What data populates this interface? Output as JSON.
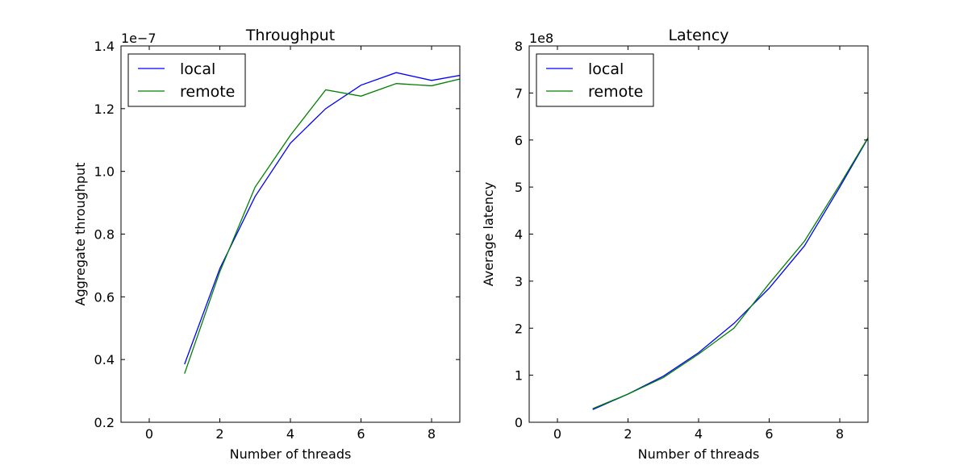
{
  "chart_data": [
    {
      "type": "line",
      "title": "Throughput",
      "xlabel": "Number of threads",
      "ylabel": "Aggregate throughput",
      "offset_text": "1e−7",
      "xlim": [
        -0.8,
        8.8
      ],
      "ylim": [
        0.2,
        1.4
      ],
      "xticks": [
        0,
        2,
        4,
        6,
        8
      ],
      "xtick_labels": [
        "0",
        "2",
        "4",
        "6",
        "8"
      ],
      "yticks": [
        0.2,
        0.4,
        0.6,
        0.8,
        1.0,
        1.2,
        1.4
      ],
      "ytick_labels": [
        "0.2",
        "0.4",
        "0.6",
        "0.8",
        "1.0",
        "1.2",
        "1.4"
      ],
      "legend": "top-left",
      "grid": false,
      "x": [
        1,
        2,
        3,
        4,
        5,
        6,
        7,
        8,
        9
      ],
      "series": [
        {
          "name": "local",
          "color": "#0000ff",
          "values": [
            0.385,
            0.69,
            0.92,
            1.09,
            1.2,
            1.275,
            1.315,
            1.29,
            1.31
          ]
        },
        {
          "name": "remote",
          "color": "#008000",
          "values": [
            0.355,
            0.68,
            0.95,
            1.115,
            1.26,
            1.24,
            1.28,
            1.273,
            1.3
          ]
        }
      ]
    },
    {
      "type": "line",
      "title": "Latency",
      "xlabel": "Number of threads",
      "ylabel": "Average latency",
      "offset_text": "1e8",
      "xlim": [
        -0.8,
        8.8
      ],
      "ylim": [
        0,
        8
      ],
      "xticks": [
        0,
        2,
        4,
        6,
        8
      ],
      "xtick_labels": [
        "0",
        "2",
        "4",
        "6",
        "8"
      ],
      "yticks": [
        0,
        1,
        2,
        3,
        4,
        5,
        6,
        7,
        8
      ],
      "ytick_labels": [
        "0",
        "1",
        "2",
        "3",
        "4",
        "5",
        "6",
        "7",
        "8"
      ],
      "legend": "top-left",
      "grid": false,
      "x": [
        1,
        2,
        3,
        4,
        5,
        6,
        7,
        8,
        9
      ],
      "series": [
        {
          "name": "local",
          "color": "#0000ff",
          "values": [
            0.27,
            0.6,
            0.98,
            1.48,
            2.1,
            2.85,
            3.75,
            5.0,
            6.3
          ]
        },
        {
          "name": "remote",
          "color": "#008000",
          "values": [
            0.29,
            0.6,
            0.95,
            1.45,
            2.0,
            2.95,
            3.85,
            5.05,
            6.3
          ]
        }
      ]
    }
  ]
}
